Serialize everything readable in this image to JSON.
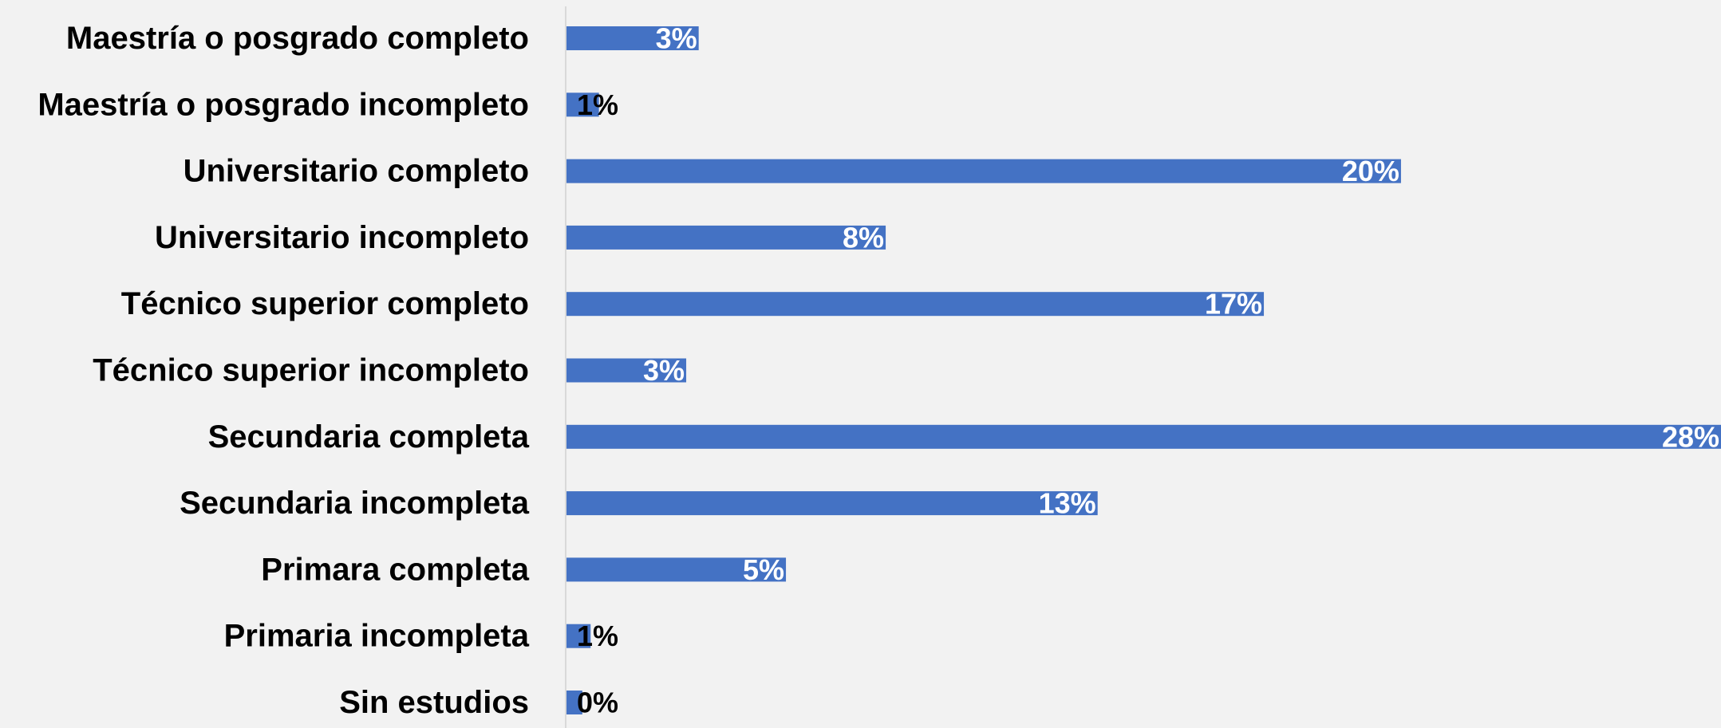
{
  "chart_data": {
    "type": "bar",
    "orientation": "horizontal",
    "categories": [
      "Maestría o posgrado completo",
      "Maestría o posgrado incompleto",
      "Universitario completo",
      "Universitario incompleto",
      "Técnico superior completo",
      "Técnico superior incompleto",
      "Secundaria completa",
      "Secundaria incompleta",
      "Primara completa",
      "Primaria incompleta",
      "Sin estudios"
    ],
    "values": [
      3.2,
      0.8,
      20.1,
      7.7,
      16.8,
      2.9,
      27.8,
      12.8,
      5.3,
      0.6,
      0.4
    ],
    "data_labels": [
      "3%",
      "1%",
      "20%",
      "8%",
      "17%",
      "3%",
      "28%",
      "13%",
      "5%",
      "1%",
      "0%"
    ],
    "xlim": [
      0,
      27.8
    ],
    "bar_color": "#4472c4",
    "axis_color": "#d9d9d9",
    "background": "#f2f2f2",
    "label_color_inside": "#ffffff",
    "label_color_outside": "#000000",
    "grid": false,
    "legend": "none"
  }
}
